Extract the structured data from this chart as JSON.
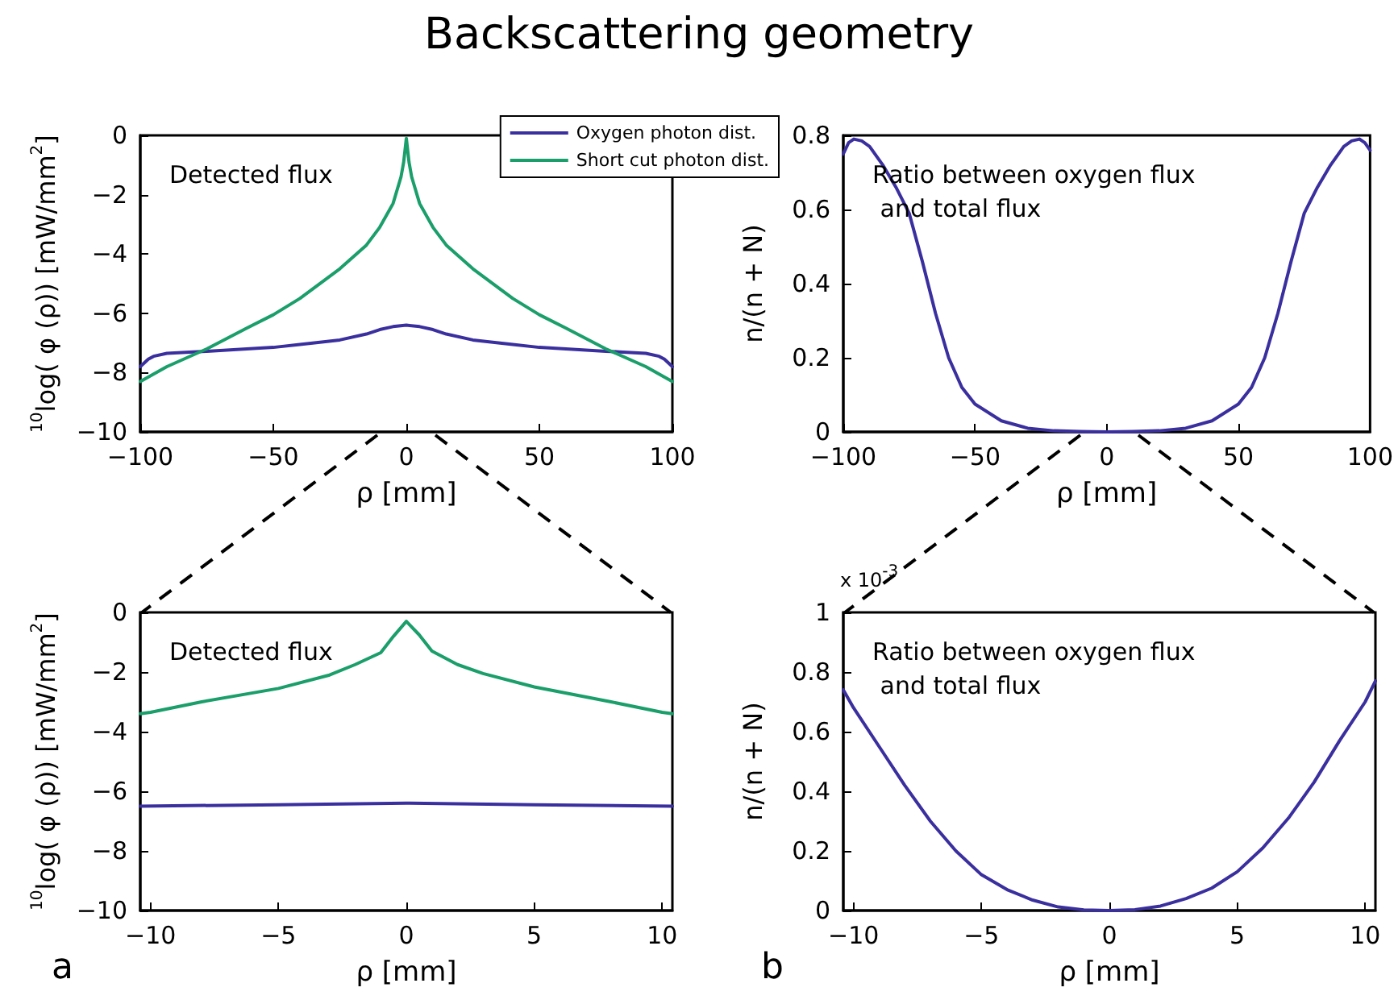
{
  "chart_data": [
    {
      "type": "line",
      "title": "Backscattering geometry",
      "xlabel": "ρ [mm]",
      "ylabel": "$^{10}$log( φ (ρ)) [mW/mm$^{2}$]",
      "xlim": [
        -100,
        100
      ],
      "xticks": [
        -100,
        -50,
        0,
        50,
        100
      ],
      "ylim": [
        -10,
        0
      ],
      "yticks": [
        -10,
        -8,
        -6,
        -4,
        -2,
        0
      ],
      "legend": "top right",
      "line_style": "solid",
      "annotations": [
        "Detected flux"
      ],
      "series": [
        {
          "name": "Oxygen photon dist.",
          "color": "#3a2f9e",
          "x": [
            -100,
            -97,
            -95,
            -90,
            -80,
            -75,
            -60,
            -50,
            -40,
            -25,
            -15,
            -10,
            -5,
            0,
            5,
            10,
            15,
            25,
            40,
            50,
            60,
            75,
            80,
            90,
            95,
            97,
            100
          ],
          "values": [
            -7.8,
            -7.55,
            -7.45,
            -7.35,
            -7.3,
            -7.28,
            -7.2,
            -7.15,
            -7.05,
            -6.9,
            -6.7,
            -6.55,
            -6.45,
            -6.4,
            -6.45,
            -6.55,
            -6.7,
            -6.9,
            -7.05,
            -7.15,
            -7.2,
            -7.28,
            -7.3,
            -7.35,
            -7.45,
            -7.55,
            -7.8
          ]
        },
        {
          "name": "Short cut photon dist.",
          "color": "#1a9e6a",
          "x": [
            -100,
            -90,
            -75,
            -60,
            -50,
            -40,
            -25,
            -15,
            -10,
            -5,
            -2,
            -1,
            0,
            1,
            2,
            5,
            10,
            15,
            25,
            40,
            50,
            60,
            75,
            90,
            100
          ],
          "values": [
            -8.3,
            -7.8,
            -7.2,
            -6.5,
            -6.05,
            -5.5,
            -4.5,
            -3.7,
            -3.1,
            -2.3,
            -1.4,
            -0.9,
            -0.1,
            -0.9,
            -1.4,
            -2.3,
            -3.1,
            -3.7,
            -4.5,
            -5.5,
            -6.05,
            -6.5,
            -7.2,
            -7.8,
            -8.3
          ]
        }
      ]
    },
    {
      "type": "line",
      "xlabel": "ρ [mm]",
      "ylabel": "n/(n + N)",
      "xlim": [
        -100,
        100
      ],
      "xticks": [
        -100,
        -50,
        0,
        50,
        100
      ],
      "ylim": [
        0,
        0.8
      ],
      "yticks": [
        0,
        0.2,
        0.4,
        0.6,
        0.8
      ],
      "line_style": "solid",
      "annotations": [
        "Ratio between oxygen flux\n and total flux"
      ],
      "series": [
        {
          "color": "#3a2f9e",
          "x": [
            -100,
            -98,
            -96,
            -93,
            -90,
            -85,
            -80,
            -75,
            -70,
            -65,
            -60,
            -55,
            -50,
            -40,
            -30,
            -20,
            -10,
            0,
            10,
            20,
            30,
            40,
            50,
            55,
            60,
            65,
            70,
            75,
            80,
            85,
            90,
            93,
            96,
            98,
            100
          ],
          "values": [
            0.75,
            0.78,
            0.79,
            0.785,
            0.77,
            0.72,
            0.66,
            0.59,
            0.46,
            0.32,
            0.2,
            0.12,
            0.075,
            0.03,
            0.01,
            0.003,
            0.001,
            0,
            0.001,
            0.003,
            0.01,
            0.03,
            0.075,
            0.12,
            0.2,
            0.32,
            0.46,
            0.59,
            0.66,
            0.72,
            0.77,
            0.785,
            0.79,
            0.78,
            0.76
          ]
        }
      ]
    },
    {
      "type": "line",
      "xlabel": "ρ [mm]",
      "ylabel": "$^{10}$log( φ (ρ)) [mW/mm$^{2}$]",
      "xlim": [
        -10.4,
        10.4
      ],
      "xticks": [
        -10,
        -5,
        0,
        5,
        10
      ],
      "ylim": [
        -10,
        0
      ],
      "yticks": [
        -10,
        -8,
        -6,
        -4,
        -2,
        0
      ],
      "line_style": "solid",
      "annotations": [
        "Detected flux",
        "a"
      ],
      "series": [
        {
          "color": "#3a2f9e",
          "x": [
            -10.4,
            -5,
            0,
            5,
            10.4
          ],
          "values": [
            -6.5,
            -6.45,
            -6.4,
            -6.45,
            -6.5
          ]
        },
        {
          "color": "#1a9e6a",
          "x": [
            -10.4,
            -10,
            -8,
            -5,
            -3,
            -2,
            -1,
            -0.5,
            0,
            0.5,
            1,
            2,
            3,
            5,
            8,
            10,
            10.4
          ],
          "values": [
            -3.4,
            -3.35,
            -3.0,
            -2.55,
            -2.1,
            -1.75,
            -1.35,
            -0.8,
            -0.3,
            -0.75,
            -1.3,
            -1.75,
            -2.05,
            -2.5,
            -3.0,
            -3.35,
            -3.4
          ]
        }
      ]
    },
    {
      "type": "line",
      "xlabel": "ρ [mm]",
      "ylabel": "n/(n + N)",
      "xlim": [
        -10.4,
        10.4
      ],
      "xticks": [
        -10,
        -5,
        0,
        5,
        10
      ],
      "ylim": [
        0,
        1
      ],
      "yticks": [
        0,
        0.2,
        0.4,
        0.6,
        0.8,
        1
      ],
      "line_style": "solid",
      "annotations": [
        "Ratio between oxygen flux\n and total flux",
        "b",
        "x 10$^{-3}$"
      ],
      "series": [
        {
          "color": "#3a2f9e",
          "x": [
            -10.4,
            -10,
            -9,
            -8,
            -7,
            -6,
            -5,
            -4,
            -3,
            -2,
            -1,
            0,
            1,
            2,
            3,
            4,
            5,
            6,
            7,
            8,
            9,
            10,
            10.4
          ],
          "values": [
            0.74,
            0.68,
            0.55,
            0.42,
            0.3,
            0.2,
            0.12,
            0.07,
            0.035,
            0.012,
            0.002,
            0,
            0.003,
            0.015,
            0.04,
            0.075,
            0.13,
            0.21,
            0.31,
            0.43,
            0.57,
            0.7,
            0.77
          ]
        }
      ]
    }
  ]
}
